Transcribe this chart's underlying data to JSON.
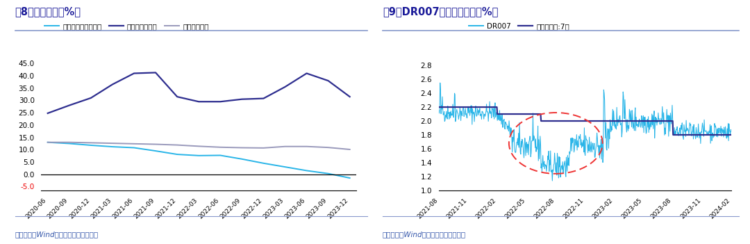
{
  "fig8_title": "图8：贷款增速（%）",
  "fig9_title": "图9：DR007与逆回购利率（%）",
  "source_text": "资料来源：Wind，中国银河证券研究院",
  "fig8": {
    "xticks": [
      "2020-06",
      "2020-09",
      "2020-12",
      "2021-03",
      "2021-06",
      "2021-09",
      "2021-12",
      "2022-03",
      "2022-06",
      "2022-09",
      "2022-12",
      "2023-03",
      "2023-06",
      "2023-09",
      "2023-12"
    ],
    "ylim": [
      -6.5,
      47.0
    ],
    "yticks": [
      -5.0,
      0.0,
      5.0,
      10.0,
      15.0,
      20.0,
      25.0,
      30.0,
      35.0,
      40.0,
      45.0
    ],
    "real_estate": [
      13.0,
      12.5,
      11.8,
      11.2,
      10.8,
      9.5,
      8.1,
      7.6,
      7.7,
      6.2,
      4.5,
      3.0,
      1.5,
      0.3,
      -1.5
    ],
    "manufacturing": [
      24.8,
      28.0,
      31.0,
      36.5,
      41.0,
      41.3,
      31.5,
      29.5,
      29.5,
      30.5,
      30.8,
      35.5,
      41.0,
      38.0,
      31.5
    ],
    "total_loans": [
      13.0,
      13.0,
      12.8,
      12.6,
      12.4,
      12.2,
      11.9,
      11.4,
      11.0,
      10.8,
      10.7,
      11.3,
      11.3,
      10.9,
      10.1
    ],
    "real_estate_color": "#29B5E8",
    "manufacturing_color": "#2E2E8F",
    "total_loans_color": "#9999BB",
    "legend_labels": [
      "房地产相关贷款增速",
      "制造业贷款增速",
      "各项贷款增速"
    ]
  },
  "fig9": {
    "ylim": [
      1.0,
      2.9
    ],
    "yticks": [
      1.0,
      1.2,
      1.4,
      1.6,
      1.8,
      2.0,
      2.2,
      2.4,
      2.6,
      2.8
    ],
    "xticks": [
      "2021-08",
      "2021-11",
      "2022-02",
      "2022-05",
      "2022-08",
      "2022-11",
      "2023-02",
      "2023-05",
      "2023-08",
      "2023-11",
      "2024-02"
    ],
    "dr007_color": "#29B5E8",
    "repo_color": "#2E2E8F",
    "legend_labels": [
      "DR007",
      "逆回购利率:7天"
    ],
    "circle_color": "#EE3333"
  },
  "title_color": "#1A1A99",
  "source_color": "#3355AA",
  "divider_color": "#8899CC",
  "neg_label_color": "#EE0000"
}
